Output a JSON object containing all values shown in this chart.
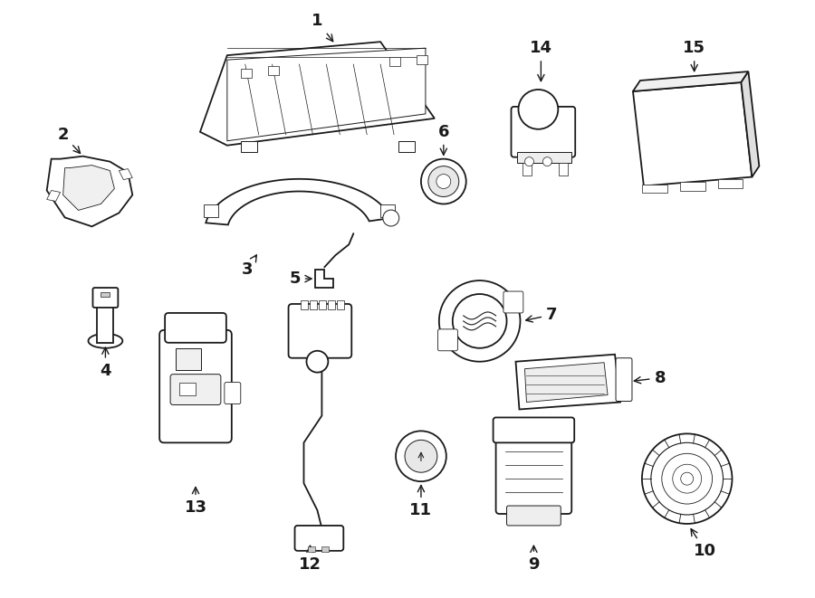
{
  "background_color": "#ffffff",
  "line_color": "#1a1a1a",
  "figsize": [
    9.0,
    6.61
  ],
  "dpi": 100,
  "label_fontsize": 13,
  "label_fontweight": "bold"
}
